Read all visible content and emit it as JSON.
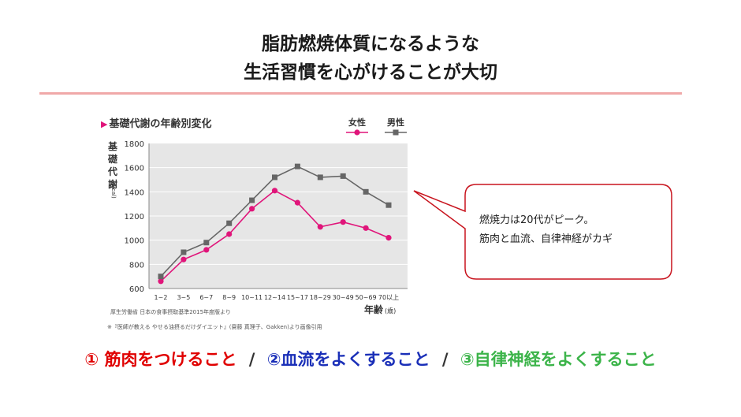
{
  "title": {
    "line1": "脂肪燃焼体質になるような",
    "line2": "生活習慣を心がけることが大切"
  },
  "chart_heading": "基礎代謝の年齢別変化",
  "chart_data": {
    "type": "line",
    "categories": [
      "1~2",
      "3~5",
      "6~7",
      "8~9",
      "10~11",
      "12~14",
      "15~17",
      "18~29",
      "30~49",
      "50~69",
      "70以上"
    ],
    "series": [
      {
        "name": "女性",
        "color": "#e0157a",
        "marker": "circle",
        "values": [
          660,
          840,
          920,
          1050,
          1260,
          1410,
          1310,
          1110,
          1150,
          1100,
          1020
        ]
      },
      {
        "name": "男性",
        "color": "#666666",
        "marker": "square",
        "values": [
          700,
          900,
          980,
          1140,
          1330,
          1520,
          1610,
          1520,
          1530,
          1400,
          1290
        ]
      }
    ],
    "ylim": [
      600,
      1800
    ],
    "yticks": [
      600,
      800,
      1000,
      1200,
      1400,
      1600,
      1800
    ],
    "ylabel_chars": [
      "基",
      "礎",
      "代",
      "謝"
    ],
    "ylabel_unit": "(kcal)",
    "xlabel": "年齢",
    "xlabel_unit": "(歳)",
    "grid": true,
    "legend_position": "top-right"
  },
  "source_note": "厚生労働省 日本の食事摂取基準2015年度版より",
  "credit_note": "※『医師が教える やせる油摂るだけダイエット』(齋藤 真理子、Gakken)より画像引用",
  "callout": {
    "line1": "燃焼力は20代がピーク。",
    "line2": "筋肉と血流、自律神経がカギ"
  },
  "footer": {
    "item1": "① 筋肉をつけること",
    "item2": "②血流をよくすること",
    "item3": "③自律神経をよくすること",
    "separator": "/",
    "colors": {
      "item1": "#e00000",
      "item2": "#1a2fb8",
      "item3": "#3cb44a"
    }
  }
}
